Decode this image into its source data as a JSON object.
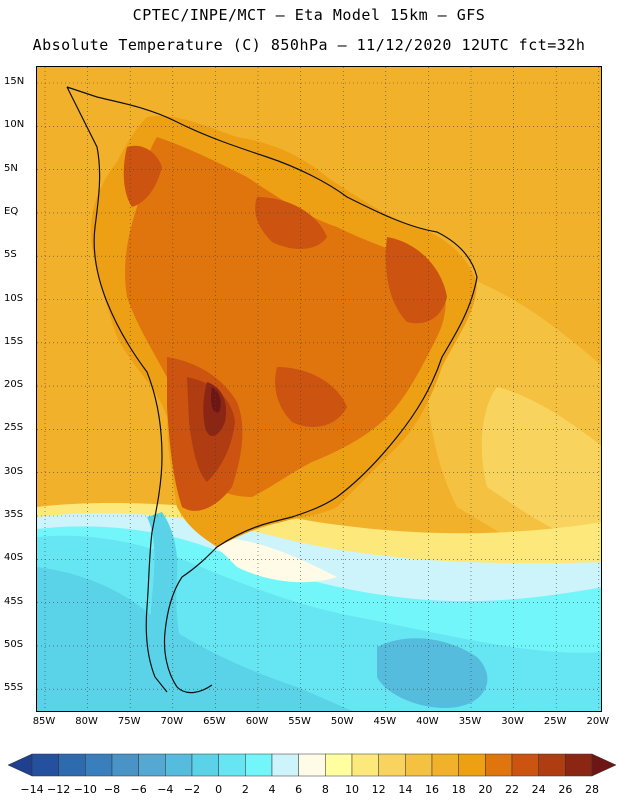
{
  "title_line1": "CPTEC/INPE/MCT –  Eta Model 15km – GFS",
  "title_line2": "Absolute Temperature (C) 850hPa – 11/12/2020 12UTC fct=32h",
  "lat_labels": [
    "15N",
    "10N",
    "5N",
    "EQ",
    "5S",
    "10S",
    "15S",
    "20S",
    "25S",
    "30S",
    "35S",
    "40S",
    "45S",
    "50S",
    "55S"
  ],
  "lon_labels": [
    "85W",
    "80W",
    "75W",
    "70W",
    "65W",
    "60W",
    "55W",
    "50W",
    "45W",
    "40W",
    "35W",
    "30W",
    "25W",
    "20W"
  ],
  "colorbar": {
    "labels": [
      "-14",
      "-12",
      "-10",
      "-8",
      "-6",
      "-4",
      "-2",
      "0",
      "2",
      "4",
      "6",
      "8",
      "10",
      "12",
      "14",
      "16",
      "18",
      "20",
      "22",
      "24",
      "26",
      "28"
    ],
    "colors": [
      "#1f3f8f",
      "#24509e",
      "#2d6aae",
      "#3a7fbd",
      "#4a93c6",
      "#55a8d2",
      "#55bcdd",
      "#5ad2e8",
      "#66e6f2",
      "#73f6fa",
      "#cdf3fb",
      "#fffbe6",
      "#ffff9f",
      "#fde87c",
      "#f8d45e",
      "#f4c240",
      "#f2b12a",
      "#eea015",
      "#e0750e",
      "#cc5410",
      "#b03c12",
      "#8c2614",
      "#6e1616"
    ]
  },
  "map": {
    "layer_names": [
      "ocean-16-18",
      "ocean-18-20",
      "continent-20-22",
      "warm-core-22-24",
      "hot-core-24-26",
      "extreme-core-26-28",
      "cool-zone-10-12",
      "cold-zone-6-8",
      "cold-zone-2-4",
      "cold-zone-0-2",
      "andes-cold-zone"
    ]
  }
}
